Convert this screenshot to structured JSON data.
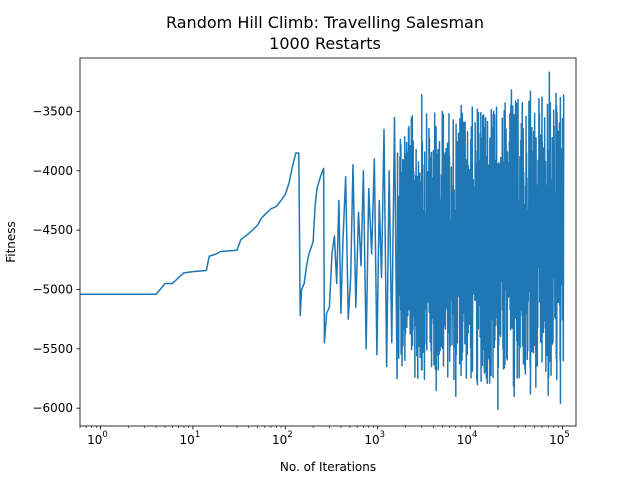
{
  "chart_data": {
    "type": "line",
    "title": "Random Hill Climb: Travelling Salesman",
    "subtitle": "1000 Restarts",
    "xlabel": "No. of Iterations",
    "ylabel": "Fitness",
    "xscale": "log",
    "xlim": [
      0.6,
      140000
    ],
    "ylim": [
      -6150,
      -3050
    ],
    "grid": false,
    "line_color": "#1f77b4",
    "x_ticks": [
      {
        "value": 1,
        "base": "10",
        "exp": "0"
      },
      {
        "value": 10,
        "base": "10",
        "exp": "1"
      },
      {
        "value": 100,
        "base": "10",
        "exp": "2"
      },
      {
        "value": 1000,
        "base": "10",
        "exp": "3"
      },
      {
        "value": 10000,
        "base": "10",
        "exp": "4"
      },
      {
        "value": 100000,
        "base": "10",
        "exp": "5"
      }
    ],
    "y_ticks": [
      {
        "value": -3500,
        "label": "−3500"
      },
      {
        "value": -4000,
        "label": "−4000"
      },
      {
        "value": -4500,
        "label": "−4500"
      },
      {
        "value": -5000,
        "label": "−5000"
      },
      {
        "value": -5500,
        "label": "−5500"
      },
      {
        "value": -6000,
        "label": "−6000"
      }
    ],
    "series": [
      {
        "points": [
          [
            0.6,
            -5040
          ],
          [
            4,
            -5040
          ],
          [
            5,
            -4950
          ],
          [
            6,
            -4950
          ],
          [
            7,
            -4900
          ],
          [
            8,
            -4860
          ],
          [
            10,
            -4850
          ],
          [
            14,
            -4840
          ],
          [
            15,
            -4720
          ],
          [
            18,
            -4700
          ],
          [
            20,
            -4680
          ],
          [
            30,
            -4670
          ],
          [
            33,
            -4580
          ],
          [
            40,
            -4530
          ],
          [
            50,
            -4460
          ],
          [
            55,
            -4400
          ],
          [
            60,
            -4370
          ],
          [
            70,
            -4320
          ],
          [
            80,
            -4300
          ],
          [
            90,
            -4250
          ],
          [
            100,
            -4200
          ],
          [
            110,
            -4100
          ],
          [
            120,
            -3960
          ],
          [
            130,
            -3850
          ],
          [
            140,
            -3850
          ],
          [
            145,
            -5220
          ],
          [
            150,
            -5000
          ],
          [
            160,
            -4950
          ],
          [
            170,
            -4800
          ],
          [
            180,
            -4700
          ],
          [
            200,
            -4600
          ],
          [
            210,
            -4300
          ],
          [
            220,
            -4150
          ],
          [
            240,
            -4050
          ],
          [
            260,
            -3980
          ],
          [
            265,
            -5450
          ],
          [
            280,
            -5200
          ],
          [
            300,
            -5150
          ],
          [
            320,
            -4700
          ],
          [
            340,
            -4550
          ],
          [
            360,
            -4950
          ],
          [
            380,
            -4250
          ],
          [
            400,
            -5200
          ],
          [
            420,
            -4600
          ],
          [
            450,
            -4050
          ],
          [
            480,
            -5250
          ],
          [
            510,
            -4900
          ],
          [
            540,
            -3950
          ],
          [
            580,
            -5150
          ],
          [
            620,
            -4350
          ],
          [
            660,
            -4800
          ],
          [
            700,
            -4000
          ],
          [
            750,
            -5500
          ],
          [
            800,
            -4150
          ],
          [
            860,
            -4700
          ],
          [
            920,
            -3900
          ],
          [
            980,
            -5550
          ],
          [
            1040,
            -4250
          ],
          [
            1100,
            -4900
          ],
          [
            1170,
            -3650
          ],
          [
            1250,
            -5650
          ],
          [
            1330,
            -4000
          ],
          [
            1420,
            -5450
          ],
          [
            1520,
            -3550
          ],
          [
            1620,
            -5750
          ]
        ],
        "stochastic_band": {
          "x_start": 1620,
          "x_end": 103000,
          "count": 700,
          "top_start": -3550,
          "top_end": -3350,
          "bottom_start": -5750,
          "bottom_end": -5850,
          "y_extremes": [
            [
              3000,
              -3360
            ],
            [
              5000,
              -3500
            ],
            [
              8000,
              -3450
            ],
            [
              12000,
              -3480
            ],
            [
              18000,
              -3500
            ],
            [
              28000,
              -3320
            ],
            [
              33000,
              -3400
            ],
            [
              45000,
              -3330
            ],
            [
              60000,
              -3380
            ],
            [
              72000,
              -3170
            ],
            [
              85000,
              -3350
            ],
            [
              100000,
              -3560
            ],
            [
              4300,
              -5850
            ],
            [
              7000,
              -5900
            ],
            [
              12000,
              -5800
            ],
            [
              20000,
              -6010
            ],
            [
              30000,
              -5900
            ],
            [
              45000,
              -5880
            ],
            [
              70000,
              -5890
            ],
            [
              95000,
              -5960
            ],
            [
              102000,
              -5600
            ],
            [
              103000,
              -3900
            ]
          ]
        }
      }
    ]
  }
}
